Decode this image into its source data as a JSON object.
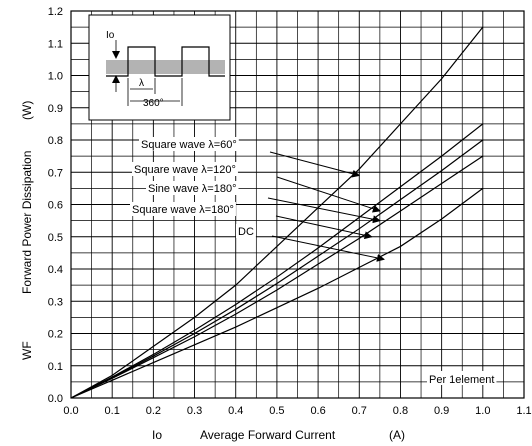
{
  "chart_data": {
    "type": "line",
    "xlabel_symbol": "Io",
    "xlabel": "Average Forward Current",
    "xlabel_unit": "(A)",
    "ylabel_symbol": "WF",
    "ylabel": "Forward Power Dissipation",
    "ylabel_unit": "(W)",
    "xlim": [
      0.0,
      1.1
    ],
    "ylim": [
      0.0,
      1.2
    ],
    "x_ticks": [
      "0.0",
      "0.1",
      "0.2",
      "0.3",
      "0.4",
      "0.5",
      "0.6",
      "0.7",
      "0.8",
      "0.9",
      "1.0",
      "1.1"
    ],
    "y_ticks": [
      "0.0",
      "0.1",
      "0.2",
      "0.3",
      "0.4",
      "0.5",
      "0.6",
      "0.7",
      "0.8",
      "0.9",
      "1.0",
      "1.1",
      "1.2"
    ],
    "grid": true,
    "series": [
      {
        "name": "Square wave λ=60°",
        "x": [
          0.0,
          0.1,
          0.2,
          0.3,
          0.4,
          0.5,
          0.6,
          0.7,
          0.8,
          0.9,
          1.0
        ],
        "y": [
          0.0,
          0.07,
          0.16,
          0.25,
          0.35,
          0.47,
          0.59,
          0.71,
          0.85,
          0.99,
          1.15
        ]
      },
      {
        "name": "Square wave λ=120°",
        "x": [
          0.0,
          0.1,
          0.2,
          0.3,
          0.4,
          0.5,
          0.6,
          0.7,
          0.8,
          0.9,
          1.0
        ],
        "y": [
          0.0,
          0.065,
          0.135,
          0.21,
          0.29,
          0.375,
          0.465,
          0.56,
          0.655,
          0.75,
          0.85
        ]
      },
      {
        "name": "Sine wave λ=180°",
        "x": [
          0.0,
          0.1,
          0.2,
          0.3,
          0.4,
          0.5,
          0.6,
          0.7,
          0.8,
          0.9,
          1.0
        ],
        "y": [
          0.0,
          0.063,
          0.13,
          0.2,
          0.275,
          0.355,
          0.44,
          0.525,
          0.615,
          0.705,
          0.8
        ]
      },
      {
        "name": "Square wave λ=180°",
        "x": [
          0.0,
          0.1,
          0.2,
          0.3,
          0.4,
          0.5,
          0.6,
          0.7,
          0.8,
          0.9,
          1.0
        ],
        "y": [
          0.0,
          0.061,
          0.125,
          0.19,
          0.26,
          0.335,
          0.415,
          0.495,
          0.58,
          0.665,
          0.75
        ]
      },
      {
        "name": "DC",
        "x": [
          0.0,
          0.1,
          0.2,
          0.3,
          0.4,
          0.5,
          0.6,
          0.7,
          0.8,
          0.9,
          1.0
        ],
        "y": [
          0.0,
          0.055,
          0.11,
          0.165,
          0.22,
          0.28,
          0.34,
          0.405,
          0.47,
          0.555,
          0.65
        ]
      }
    ],
    "annotations": {
      "labels": [
        {
          "text": "Square wave λ=60°",
          "tip": [
            0.7,
            0.69
          ]
        },
        {
          "text": "Square wave λ=120°",
          "tip": [
            0.75,
            0.58
          ]
        },
        {
          "text": "Sine wave λ=180°",
          "tip": [
            0.75,
            0.55
          ]
        },
        {
          "text": "Square wave λ=180°",
          "tip": [
            0.73,
            0.5
          ]
        },
        {
          "text": "DC",
          "tip": [
            0.76,
            0.43
          ]
        }
      ],
      "note": "Per 1element"
    },
    "inset": {
      "io_label": "Io",
      "lambda_label": "λ",
      "period_label": "360°"
    }
  }
}
